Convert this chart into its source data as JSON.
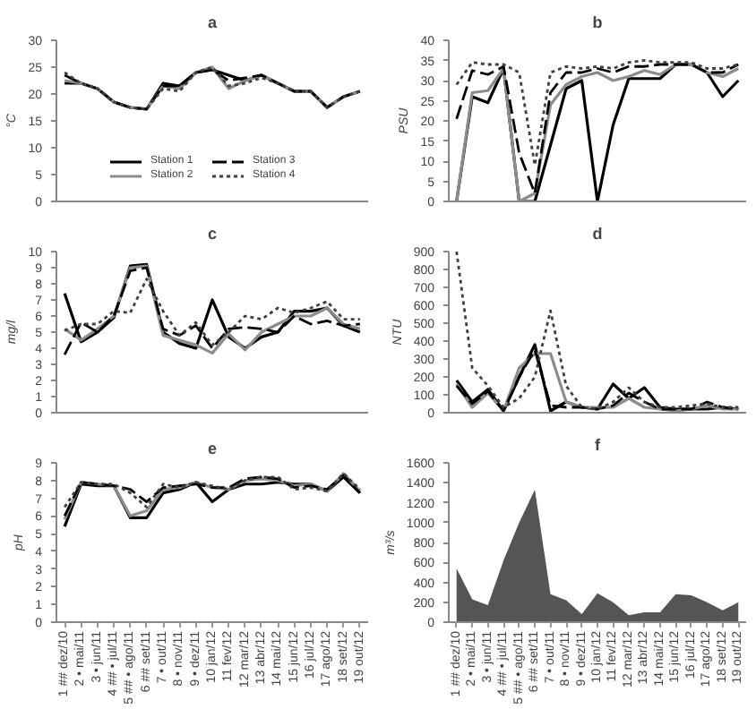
{
  "chart_data": [
    {
      "type": "line",
      "title": "a",
      "ylabel": "°C",
      "ylim": [
        0,
        30
      ],
      "yticks": [
        0,
        5,
        10,
        15,
        20,
        25,
        30
      ],
      "tick_labels": "y",
      "grid": false,
      "legend": "bottom",
      "categories": [
        null,
        null,
        null,
        null,
        null,
        null,
        null,
        null,
        null,
        null,
        null,
        null,
        null,
        null,
        null,
        null,
        null,
        null,
        null
      ],
      "series": [
        {
          "name": "Station 1",
          "color": "#000000",
          "line_style": "solid",
          "values": [
            22,
            22,
            21,
            18.5,
            17.5,
            17.2,
            22,
            21.5,
            24,
            24.5,
            23.5,
            22.5,
            23.5,
            22,
            20.5,
            20.5,
            17.5,
            19.5,
            20.5
          ]
        },
        {
          "name": "Station 2",
          "color": "#8c8c8c",
          "line_style": "solid",
          "values": [
            22.5,
            22,
            21,
            18.5,
            17.5,
            17.2,
            21.5,
            21,
            24,
            25,
            21,
            22.5,
            23.5,
            22,
            20.5,
            20.5,
            17.5,
            19.5,
            20.5
          ]
        },
        {
          "name": "Station 3",
          "color": "#000000",
          "line_style": "dashed",
          "values": [
            23.5,
            22,
            21,
            18.5,
            17.5,
            17.2,
            21.5,
            21.5,
            24,
            24.5,
            22.5,
            23,
            23.5,
            22,
            20.5,
            20.5,
            17.5,
            19.5,
            20.5
          ]
        },
        {
          "name": "Station 4",
          "color": "#404040",
          "line_style": "dotted",
          "values": [
            24,
            22,
            21,
            18.5,
            17.5,
            17.2,
            21,
            20.5,
            24,
            25,
            21.5,
            22,
            23,
            22,
            20.5,
            20.5,
            17.5,
            19.5,
            20.5
          ]
        }
      ]
    },
    {
      "type": "line",
      "title": "b",
      "ylabel": "PSU",
      "ylim": [
        0,
        40
      ],
      "yticks": [
        0,
        5,
        10,
        15,
        20,
        25,
        30,
        35,
        40
      ],
      "tick_labels": "y",
      "grid": false,
      "categories": [
        null,
        null,
        null,
        null,
        null,
        null,
        null,
        null,
        null,
        null,
        null,
        null,
        null,
        null,
        null,
        null,
        null,
        null,
        null
      ],
      "series": [
        {
          "color": "#000000",
          "line_style": "solid",
          "values": [
            0,
            26,
            24.5,
            33,
            0,
            0,
            14,
            28,
            30,
            0,
            19,
            30.5,
            30.5,
            30.5,
            34,
            34,
            32,
            26,
            30
          ]
        },
        {
          "color": "#8c8c8c",
          "line_style": "solid",
          "values": [
            0,
            27,
            27.5,
            33,
            0,
            2,
            24,
            29,
            31,
            32,
            30,
            31,
            32.5,
            31.5,
            34,
            34,
            32,
            31,
            33
          ]
        },
        {
          "color": "#000000",
          "line_style": "dashed",
          "values": [
            20.5,
            32.5,
            31.5,
            33.5,
            12,
            2,
            27,
            32,
            32,
            33,
            32,
            33.5,
            33.5,
            34,
            34,
            34,
            32,
            32,
            34
          ]
        },
        {
          "color": "#404040",
          "line_style": "dotted",
          "values": [
            29,
            34.5,
            34,
            34,
            32,
            9,
            32,
            33.5,
            33,
            33.5,
            33,
            34.5,
            35,
            34.5,
            34.5,
            34.5,
            33,
            33,
            34
          ]
        }
      ]
    },
    {
      "type": "line",
      "title": "c",
      "ylabel": "mg/l",
      "ylim": [
        0,
        10
      ],
      "yticks": [
        0,
        1,
        2,
        3,
        4,
        5,
        6,
        7,
        8,
        9,
        10
      ],
      "tick_labels": "y",
      "grid": false,
      "categories": [
        null,
        null,
        null,
        null,
        null,
        null,
        null,
        null,
        null,
        null,
        null,
        null,
        null,
        null,
        null,
        null,
        null,
        null,
        null
      ],
      "series": [
        {
          "color": "#000000",
          "line_style": "solid",
          "values": [
            7.4,
            4.4,
            5.0,
            5.9,
            9.1,
            9.2,
            5.0,
            4.3,
            4.0,
            7.0,
            4.7,
            4.0,
            4.7,
            5.0,
            6.3,
            6.3,
            6.5,
            5.4,
            5.0
          ]
        },
        {
          "color": "#8c8c8c",
          "line_style": "solid",
          "values": [
            5.2,
            4.5,
            5.2,
            6.0,
            9.0,
            9.1,
            4.8,
            4.5,
            4.2,
            3.7,
            4.9,
            3.9,
            5.0,
            5.5,
            6.0,
            6.0,
            6.5,
            5.5,
            5.2
          ]
        },
        {
          "color": "#000000",
          "line_style": "dashed",
          "values": [
            3.6,
            5.6,
            5.0,
            6.0,
            8.8,
            9.0,
            5.2,
            4.8,
            5.4,
            4.0,
            5.2,
            5.3,
            5.2,
            5.0,
            6.0,
            5.5,
            5.7,
            5.4,
            5.5
          ]
        },
        {
          "color": "#404040",
          "line_style": "dotted",
          "values": [
            5.1,
            5.5,
            5.5,
            6.3,
            6.2,
            8.3,
            6.3,
            4.8,
            5.6,
            4.2,
            5.0,
            6.0,
            5.8,
            6.5,
            6.2,
            6.5,
            6.9,
            5.8,
            5.8
          ]
        }
      ]
    },
    {
      "type": "line",
      "title": "d",
      "ylabel": "NTU",
      "ylim": [
        0,
        900
      ],
      "yticks": [
        0,
        100,
        200,
        300,
        400,
        500,
        600,
        700,
        800,
        900
      ],
      "tick_labels": "y",
      "grid": false,
      "categories": [
        null,
        null,
        null,
        null,
        null,
        null,
        null,
        null,
        null,
        null,
        null,
        null,
        null,
        null,
        null,
        null,
        null,
        null,
        null
      ],
      "series": [
        {
          "color": "#000000",
          "line_style": "solid",
          "values": [
            180,
            60,
            130,
            10,
            200,
            380,
            10,
            60,
            30,
            20,
            160,
            80,
            140,
            30,
            20,
            20,
            20,
            30,
            20
          ]
        },
        {
          "color": "#8c8c8c",
          "line_style": "solid",
          "values": [
            160,
            30,
            110,
            10,
            250,
            330,
            330,
            60,
            30,
            30,
            30,
            80,
            30,
            20,
            10,
            20,
            40,
            20,
            20
          ]
        },
        {
          "color": "#000000",
          "line_style": "dashed",
          "values": [
            150,
            50,
            120,
            10,
            200,
            350,
            40,
            30,
            30,
            20,
            40,
            110,
            60,
            20,
            20,
            20,
            60,
            30,
            20
          ]
        },
        {
          "color": "#404040",
          "line_style": "dotted",
          "values": [
            900,
            250,
            150,
            30,
            80,
            200,
            570,
            150,
            30,
            20,
            60,
            140,
            60,
            30,
            30,
            40,
            50,
            30,
            30
          ]
        }
      ]
    },
    {
      "type": "line",
      "title": "e",
      "ylabel": "pH",
      "ylim": [
        0,
        9
      ],
      "yticks": [
        0,
        1,
        2,
        3,
        4,
        5,
        6,
        7,
        8,
        9
      ],
      "grid": false,
      "categories": [
        "1 ## dez/10",
        "2 • mai/11",
        "3 • jun/11",
        "4 ## • jul/11",
        "5 ## • ago/11",
        "6 ## set/11",
        "7 • out/11",
        "8 • nov/11",
        "9 • dez/11",
        "10 jan/12",
        "11 fev/12",
        "12 mar/12",
        "13 abr/12",
        "14 mai/12",
        "15 jun/12",
        "16 jul/12",
        "17 ago/12",
        "18 set/12",
        "19 out/12"
      ],
      "series": [
        {
          "color": "#000000",
          "line_style": "solid",
          "values": [
            5.4,
            7.8,
            7.7,
            7.7,
            5.9,
            5.9,
            7.3,
            7.5,
            7.9,
            6.8,
            7.5,
            7.8,
            7.8,
            7.9,
            7.8,
            7.8,
            7.4,
            8.2,
            7.3
          ]
        },
        {
          "color": "#8c8c8c",
          "line_style": "solid",
          "values": [
            5.8,
            7.9,
            7.8,
            7.7,
            6.0,
            6.3,
            7.5,
            7.6,
            7.9,
            7.6,
            7.5,
            8.0,
            8.1,
            8.0,
            7.7,
            7.8,
            7.4,
            8.4,
            7.4
          ]
        },
        {
          "color": "#000000",
          "line_style": "dashed",
          "values": [
            6.0,
            7.9,
            7.8,
            7.7,
            7.5,
            6.8,
            7.6,
            7.7,
            7.8,
            7.6,
            7.6,
            8.1,
            8.2,
            8.1,
            7.6,
            7.7,
            7.5,
            8.3,
            7.3
          ]
        },
        {
          "color": "#404040",
          "line_style": "dotted",
          "values": [
            6.5,
            7.9,
            7.8,
            7.8,
            7.3,
            6.5,
            7.8,
            7.6,
            7.9,
            7.7,
            7.5,
            8.0,
            8.2,
            8.2,
            7.5,
            7.6,
            7.4,
            8.4,
            7.5
          ]
        }
      ]
    },
    {
      "type": "area",
      "title": "f",
      "ylabel": "m³/s",
      "ylim": [
        0,
        1600
      ],
      "yticks": [
        0,
        200,
        400,
        600,
        800,
        1000,
        1200,
        1400,
        1600
      ],
      "grid": false,
      "categories": [
        "1 ## dez/10",
        "2 • mai/11",
        "3 • jun/11",
        "4 ## • jul/11",
        "5 ## • ago/11",
        "6 ## set/11",
        "7 • out/11",
        "8 • nov/11",
        "9 • dez/11",
        "10 jan/12",
        "11 fev/12",
        "12 mar/12",
        "13 abr/12",
        "14 mai/12",
        "15 jun/12",
        "16 jul/12",
        "17 ago/12",
        "18 set/12",
        "19 out/12"
      ],
      "series": [
        {
          "color": "#555555",
          "values": [
            540,
            230,
            170,
            620,
            1000,
            1330,
            280,
            220,
            80,
            290,
            200,
            70,
            100,
            100,
            280,
            270,
            200,
            120,
            200
          ]
        }
      ]
    }
  ]
}
